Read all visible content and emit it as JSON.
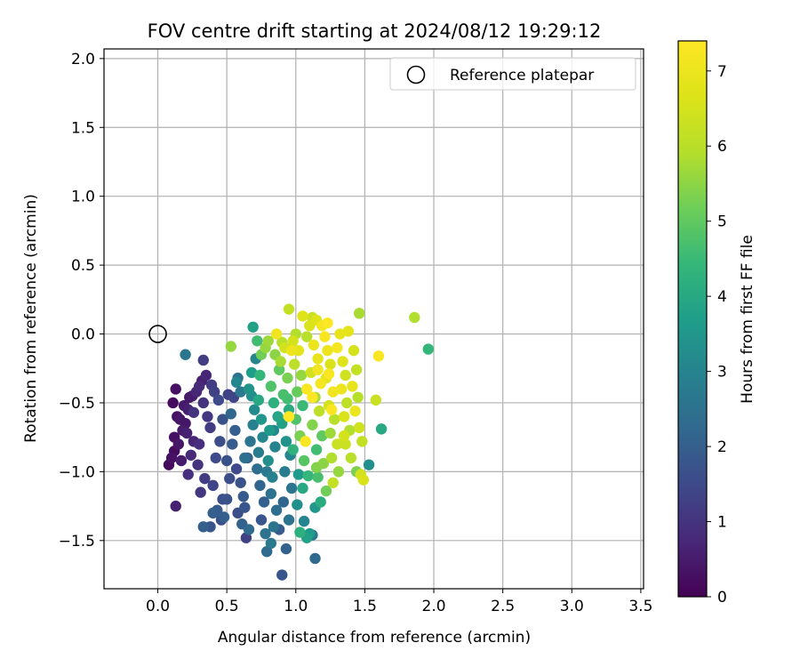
{
  "chart_data": {
    "type": "scatter",
    "title": "FOV centre drift starting at 2024/08/12 19:29:12",
    "xlabel": "Angular distance from reference (arcmin)",
    "ylabel": "Rotation from reference (arcmin)",
    "xlim": [
      -0.39,
      3.52
    ],
    "ylim": [
      -1.85,
      2.07
    ],
    "x_ticks": [
      "0.0",
      "0.5",
      "1.0",
      "1.5",
      "2.0",
      "2.5",
      "3.0",
      "3.5"
    ],
    "x_tick_values": [
      0.0,
      0.5,
      1.0,
      1.5,
      2.0,
      2.5,
      3.0,
      3.5
    ],
    "y_ticks": [
      "−1.5",
      "−1.0",
      "−0.5",
      "0.0",
      "0.5",
      "1.0",
      "1.5",
      "2.0"
    ],
    "y_tick_values": [
      -1.5,
      -1.0,
      -0.5,
      0.0,
      0.5,
      1.0,
      1.5,
      2.0
    ],
    "grid": true,
    "legend": {
      "placement": "top-right",
      "entries": [
        "Reference platepar"
      ]
    },
    "reference_point": {
      "name": "Reference platepar",
      "x": 0.0,
      "y": 0.0
    },
    "colorbar": {
      "label": "Hours from first FF file",
      "colormap": "viridis",
      "range": [
        0,
        7.4
      ],
      "ticks": [
        "0",
        "1",
        "2",
        "3",
        "4",
        "5",
        "6",
        "7"
      ],
      "tick_values": [
        0,
        1,
        2,
        3,
        4,
        5,
        6,
        7
      ]
    },
    "points": [
      [
        0.08,
        -0.95,
        0.2
      ],
      [
        0.1,
        -0.9,
        0.3
      ],
      [
        0.12,
        -0.85,
        0.2
      ],
      [
        0.15,
        -0.8,
        0.4
      ],
      [
        0.12,
        -0.75,
        0.3
      ],
      [
        0.18,
        -0.7,
        0.5
      ],
      [
        0.2,
        -0.65,
        0.4
      ],
      [
        0.14,
        -0.6,
        0.3
      ],
      [
        0.22,
        -0.55,
        0.6
      ],
      [
        0.11,
        -0.5,
        0.2
      ],
      [
        0.25,
        -0.45,
        0.5
      ],
      [
        0.13,
        -0.4,
        0.3
      ],
      [
        0.3,
        -0.38,
        0.8
      ],
      [
        0.28,
        -0.42,
        0.7
      ],
      [
        0.19,
        -0.52,
        0.5
      ],
      [
        0.16,
        -0.62,
        0.4
      ],
      [
        0.21,
        -0.72,
        0.6
      ],
      [
        0.26,
        -0.78,
        0.7
      ],
      [
        0.24,
        -0.88,
        0.8
      ],
      [
        0.17,
        -0.92,
        0.5
      ],
      [
        0.22,
        -1.02,
        0.9
      ],
      [
        0.13,
        -1.25,
        0.6
      ],
      [
        0.35,
        -0.3,
        0.7
      ],
      [
        0.32,
        -0.34,
        0.6
      ],
      [
        0.33,
        -0.5,
        1.0
      ],
      [
        0.36,
        -0.6,
        1.1
      ],
      [
        0.38,
        -0.68,
        1.2
      ],
      [
        0.3,
        -0.8,
        0.9
      ],
      [
        0.29,
        -0.95,
        1.0
      ],
      [
        0.34,
        -1.05,
        1.2
      ],
      [
        0.31,
        -1.15,
        1.1
      ],
      [
        0.4,
        -1.1,
        1.4
      ],
      [
        0.42,
        -0.9,
        1.5
      ],
      [
        0.45,
        -0.78,
        1.6
      ],
      [
        0.47,
        -0.62,
        1.7
      ],
      [
        0.44,
        -0.48,
        1.5
      ],
      [
        0.41,
        -0.42,
        1.3
      ],
      [
        0.2,
        -0.15,
        2.6
      ],
      [
        0.33,
        -0.19,
        1.2
      ],
      [
        0.39,
        -0.37,
        1.2
      ],
      [
        0.33,
        -1.4,
        2.0
      ],
      [
        0.38,
        -1.4,
        1.8
      ],
      [
        0.43,
        -1.28,
        1.9
      ],
      [
        0.48,
        -1.33,
        2.0
      ],
      [
        0.5,
        -1.2,
        1.7
      ],
      [
        0.46,
        -1.35,
        1.6
      ],
      [
        0.52,
        -1.05,
        1.6
      ],
      [
        0.5,
        -0.92,
        1.7
      ],
      [
        0.54,
        -0.8,
        1.9
      ],
      [
        0.56,
        -0.7,
        2.0
      ],
      [
        0.53,
        -0.58,
        2.2
      ],
      [
        0.55,
        -0.46,
        1.4
      ],
      [
        0.58,
        -0.32,
        2.5
      ],
      [
        0.6,
        -0.42,
        2.7
      ],
      [
        0.51,
        -0.44,
        1.3
      ],
      [
        0.57,
        -0.98,
        1.5
      ],
      [
        0.6,
        -1.08,
        1.7
      ],
      [
        0.62,
        -1.18,
        1.9
      ],
      [
        0.58,
        -1.3,
        1.6
      ],
      [
        0.61,
        -1.38,
        2.1
      ],
      [
        0.64,
        -1.48,
        1.3
      ],
      [
        0.66,
        -1.42,
        2.3
      ],
      [
        0.63,
        -1.26,
        1.8
      ],
      [
        0.65,
        -0.9,
        2.1
      ],
      [
        0.67,
        -0.78,
        2.6
      ],
      [
        0.69,
        -0.66,
        2.9
      ],
      [
        0.7,
        -0.55,
        3.2
      ],
      [
        0.66,
        -0.4,
        3.4
      ],
      [
        0.68,
        -0.28,
        3.7
      ],
      [
        0.71,
        -0.18,
        3.0
      ],
      [
        0.72,
        -0.05,
        4.6
      ],
      [
        0.75,
        -0.15,
        5.2
      ],
      [
        0.69,
        0.05,
        3.8
      ],
      [
        0.78,
        -0.1,
        5.6
      ],
      [
        0.74,
        -0.3,
        4.4
      ],
      [
        0.73,
        -0.48,
        4.0
      ],
      [
        0.75,
        -0.62,
        3.5
      ],
      [
        0.76,
        -0.75,
        3.1
      ],
      [
        0.73,
        -0.86,
        2.8
      ],
      [
        0.72,
        -0.98,
        2.4
      ],
      [
        0.74,
        -1.1,
        2.2
      ],
      [
        0.77,
        -1.22,
        2.0
      ],
      [
        0.75,
        -1.35,
        1.8
      ],
      [
        0.78,
        -1.45,
        2.5
      ],
      [
        0.79,
        -1.58,
        2.3
      ],
      [
        0.82,
        -1.52,
        2.7
      ],
      [
        0.84,
        -1.4,
        2.6
      ],
      [
        0.86,
        -1.28,
        2.4
      ],
      [
        0.82,
        -1.16,
        2.5
      ],
      [
        0.83,
        -1.04,
        2.9
      ],
      [
        0.8,
        -0.92,
        3.3
      ],
      [
        0.85,
        -0.82,
        3.0
      ],
      [
        0.81,
        -0.7,
        3.6
      ],
      [
        0.87,
        -0.6,
        3.9
      ],
      [
        0.84,
        -0.5,
        4.2
      ],
      [
        0.82,
        -0.38,
        4.8
      ],
      [
        0.88,
        -0.26,
        5.0
      ],
      [
        0.85,
        -0.15,
        5.5
      ],
      [
        0.9,
        -0.06,
        6.0
      ],
      [
        0.86,
        0.0,
        7.1
      ],
      [
        0.92,
        -0.1,
        6.4
      ],
      [
        0.89,
        -0.2,
        5.8
      ],
      [
        0.94,
        -0.32,
        5.3
      ],
      [
        0.91,
        -0.44,
        4.7
      ],
      [
        0.95,
        -0.55,
        4.1
      ],
      [
        0.9,
        -0.65,
        3.8
      ],
      [
        0.93,
        -0.78,
        3.4
      ],
      [
        0.96,
        -0.88,
        3.1
      ],
      [
        0.92,
        -1.0,
        2.8
      ],
      [
        0.97,
        -1.12,
        2.6
      ],
      [
        0.91,
        -1.22,
        2.2
      ],
      [
        0.95,
        -1.35,
        2.5
      ],
      [
        0.88,
        -1.42,
        1.9
      ],
      [
        0.93,
        -1.56,
        2.1
      ],
      [
        0.9,
        -1.75,
        1.8
      ],
      [
        0.95,
        0.18,
        6.2
      ],
      [
        0.98,
        -0.05,
        6.5
      ],
      [
        1.0,
        0.0,
        5.9
      ],
      [
        1.02,
        -0.12,
        6.8
      ],
      [
        0.99,
        -0.22,
        6.1
      ],
      [
        1.04,
        -0.3,
        5.6
      ],
      [
        1.01,
        -0.42,
        5.1
      ],
      [
        1.05,
        -0.52,
        4.5
      ],
      [
        1.0,
        -0.62,
        4.8
      ],
      [
        1.03,
        -0.74,
        5.3
      ],
      [
        0.98,
        -0.84,
        4.3
      ],
      [
        1.06,
        -0.92,
        4.9
      ],
      [
        1.02,
        -1.02,
        3.6
      ],
      [
        1.05,
        -1.12,
        4.0
      ],
      [
        1.01,
        -1.24,
        3.3
      ],
      [
        1.06,
        -1.36,
        3.0
      ],
      [
        1.03,
        -1.44,
        4.2
      ],
      [
        1.08,
        -1.48,
        3.8
      ],
      [
        1.1,
        -1.45,
        3.6
      ],
      [
        1.14,
        -1.63,
        2.3
      ],
      [
        1.12,
        -1.46,
        2.6
      ],
      [
        1.08,
        -0.02,
        6.0
      ],
      [
        1.1,
        0.06,
        6.6
      ],
      [
        1.12,
        0.12,
        6.3
      ],
      [
        1.15,
        0.1,
        6.7
      ],
      [
        1.13,
        -0.08,
        7.0
      ],
      [
        1.16,
        -0.18,
        6.9
      ],
      [
        1.11,
        -0.28,
        6.4
      ],
      [
        1.18,
        -0.36,
        7.2
      ],
      [
        1.14,
        -0.46,
        5.8
      ],
      [
        1.17,
        -0.56,
        6.1
      ],
      [
        1.12,
        -0.66,
        5.4
      ],
      [
        1.19,
        -0.74,
        5.0
      ],
      [
        1.15,
        -0.84,
        4.6
      ],
      [
        1.2,
        -0.94,
        5.5
      ],
      [
        1.16,
        -1.04,
        4.7
      ],
      [
        1.22,
        -1.14,
        5.2
      ],
      [
        1.18,
        -1.22,
        4.1
      ],
      [
        1.14,
        -1.26,
        3.5
      ],
      [
        1.21,
        -0.02,
        7.3
      ],
      [
        1.23,
        -0.12,
        7.0
      ],
      [
        1.25,
        -0.22,
        6.6
      ],
      [
        1.22,
        -0.32,
        6.8
      ],
      [
        1.27,
        -0.42,
        7.1
      ],
      [
        1.24,
        -0.52,
        6.5
      ],
      [
        1.28,
        -0.62,
        6.0
      ],
      [
        1.25,
        -0.72,
        5.7
      ],
      [
        1.3,
        -0.8,
        6.3
      ],
      [
        1.26,
        -0.9,
        5.9
      ],
      [
        1.31,
        -1.0,
        5.6
      ],
      [
        1.27,
        -1.08,
        6.2
      ],
      [
        1.32,
        0.0,
        6.9
      ],
      [
        1.3,
        -0.1,
        7.2
      ],
      [
        1.34,
        -0.2,
        6.7
      ],
      [
        1.36,
        -0.3,
        6.4
      ],
      [
        1.33,
        -0.4,
        7.0
      ],
      [
        1.37,
        -0.5,
        6.1
      ],
      [
        1.35,
        -0.6,
        6.6
      ],
      [
        1.39,
        -0.7,
        5.9
      ],
      [
        1.36,
        -0.8,
        6.3
      ],
      [
        1.4,
        -0.9,
        6.0
      ],
      [
        1.38,
        0.02,
        6.8
      ],
      [
        1.42,
        -0.12,
        6.5
      ],
      [
        1.44,
        -0.26,
        6.2
      ],
      [
        1.41,
        -0.38,
        6.9
      ],
      [
        1.45,
        -0.46,
        6.0
      ],
      [
        1.43,
        -0.56,
        7.0
      ],
      [
        1.46,
        -0.68,
        6.4
      ],
      [
        1.48,
        -0.78,
        6.2
      ],
      [
        1.44,
        -1.0,
        5.3
      ],
      [
        1.47,
        -1.02,
        6.4
      ],
      [
        1.49,
        -1.06,
        6.6
      ],
      [
        1.46,
        0.15,
        5.8
      ],
      [
        1.53,
        -0.95,
        3.3
      ],
      [
        1.58,
        -0.48,
        6.3
      ],
      [
        1.6,
        -0.16,
        7.3
      ],
      [
        1.62,
        -0.69,
        4.0
      ],
      [
        1.86,
        0.12,
        5.9
      ],
      [
        1.96,
        -0.11,
        4.4
      ],
      [
        1.23,
        0.08,
        7.4
      ],
      [
        1.05,
        0.13,
        6.7
      ],
      [
        0.95,
        -0.6,
        7.4
      ],
      [
        1.08,
        -0.4,
        7.3
      ],
      [
        1.12,
        -0.46,
        7.4
      ],
      [
        1.07,
        -0.78,
        7.3
      ],
      [
        1.24,
        -0.29,
        7.3
      ],
      [
        1.19,
        0.06,
        7.2
      ],
      [
        1.26,
        -0.55,
        7.3
      ],
      [
        0.97,
        -0.12,
        7.0
      ],
      [
        1.16,
        -0.26,
        7.1
      ],
      [
        1.35,
        -0.74,
        6.5
      ],
      [
        1.15,
        -0.97,
        5.4
      ],
      [
        1.09,
        -1.03,
        4.4
      ],
      [
        0.63,
        -0.9,
        2.4
      ],
      [
        0.57,
        -0.35,
        3.1
      ],
      [
        0.53,
        -0.09,
        5.6
      ],
      [
        0.8,
        -0.05,
        5.7
      ],
      [
        0.68,
        -0.45,
        3.3
      ],
      [
        0.94,
        -0.47,
        4.6
      ],
      [
        0.84,
        -0.7,
        3.1
      ],
      [
        0.79,
        -1.0,
        2.7
      ],
      [
        0.47,
        -1.2,
        1.6
      ],
      [
        0.4,
        -1.3,
        2.0
      ],
      [
        0.26,
        -0.57,
        1.0
      ],
      [
        0.23,
        -0.46,
        0.4
      ]
    ]
  }
}
